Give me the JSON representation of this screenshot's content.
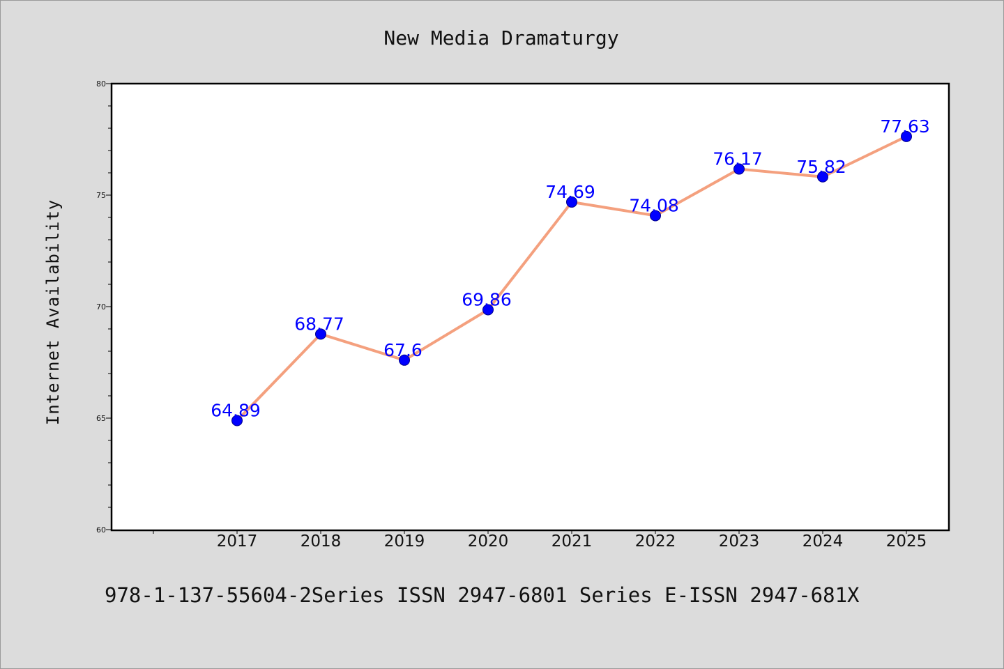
{
  "chart_data": {
    "type": "line",
    "title": "New Media Dramaturgy",
    "xlabel": "",
    "ylabel": "Internet Availability",
    "categories": [
      "2017",
      "2018",
      "2019",
      "2020",
      "2021",
      "2022",
      "2023",
      "2024",
      "2025"
    ],
    "values": [
      64.89,
      68.77,
      67.6,
      69.86,
      74.69,
      74.08,
      76.17,
      75.82,
      77.63
    ],
    "data_labels": [
      "64.89",
      "68.77",
      "67.6",
      "69.86",
      "74.69",
      "74.08",
      "76.17",
      "75.82",
      "77.63"
    ],
    "ylim": [
      60,
      80
    ],
    "yticks": [
      60,
      65,
      70,
      75,
      80
    ],
    "grid": false,
    "legend": "none",
    "colors": {
      "line": "#f4a07e",
      "marker": "#0000ff",
      "data_label": "#0000ff",
      "plot_background": "#ffffff",
      "page_background": "#dcdcdc"
    }
  },
  "footer": {
    "text": "978-1-137-55604-2Series ISSN 2947-6801 Series E-ISSN 2947-681X"
  }
}
